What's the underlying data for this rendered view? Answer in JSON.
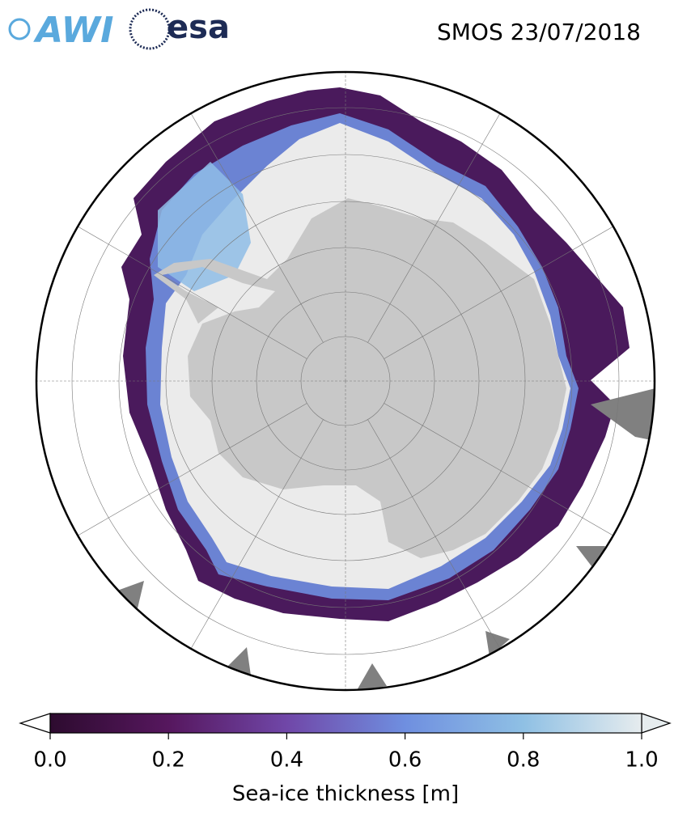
{
  "header": {
    "logos": [
      "AWI",
      "esa"
    ],
    "title": "SMOS 23/07/2018"
  },
  "colorbar": {
    "label": "Sea-ice thickness [m]",
    "lim": [
      0,
      1
    ],
    "ticks": [
      {
        "value": 0,
        "label": "0.0"
      },
      {
        "value": 0.2,
        "label": "0.2"
      },
      {
        "value": 0.4,
        "label": "0.4"
      },
      {
        "value": 0.6,
        "label": "0.6"
      },
      {
        "value": 0.8,
        "label": "0.8"
      },
      {
        "value": 1,
        "label": "1.0"
      }
    ],
    "colors": [
      "#2d0b2f",
      "#56175e",
      "#7047a8",
      "#6f8fe0",
      "#8fc0e4",
      "#e6ecee"
    ]
  }
}
